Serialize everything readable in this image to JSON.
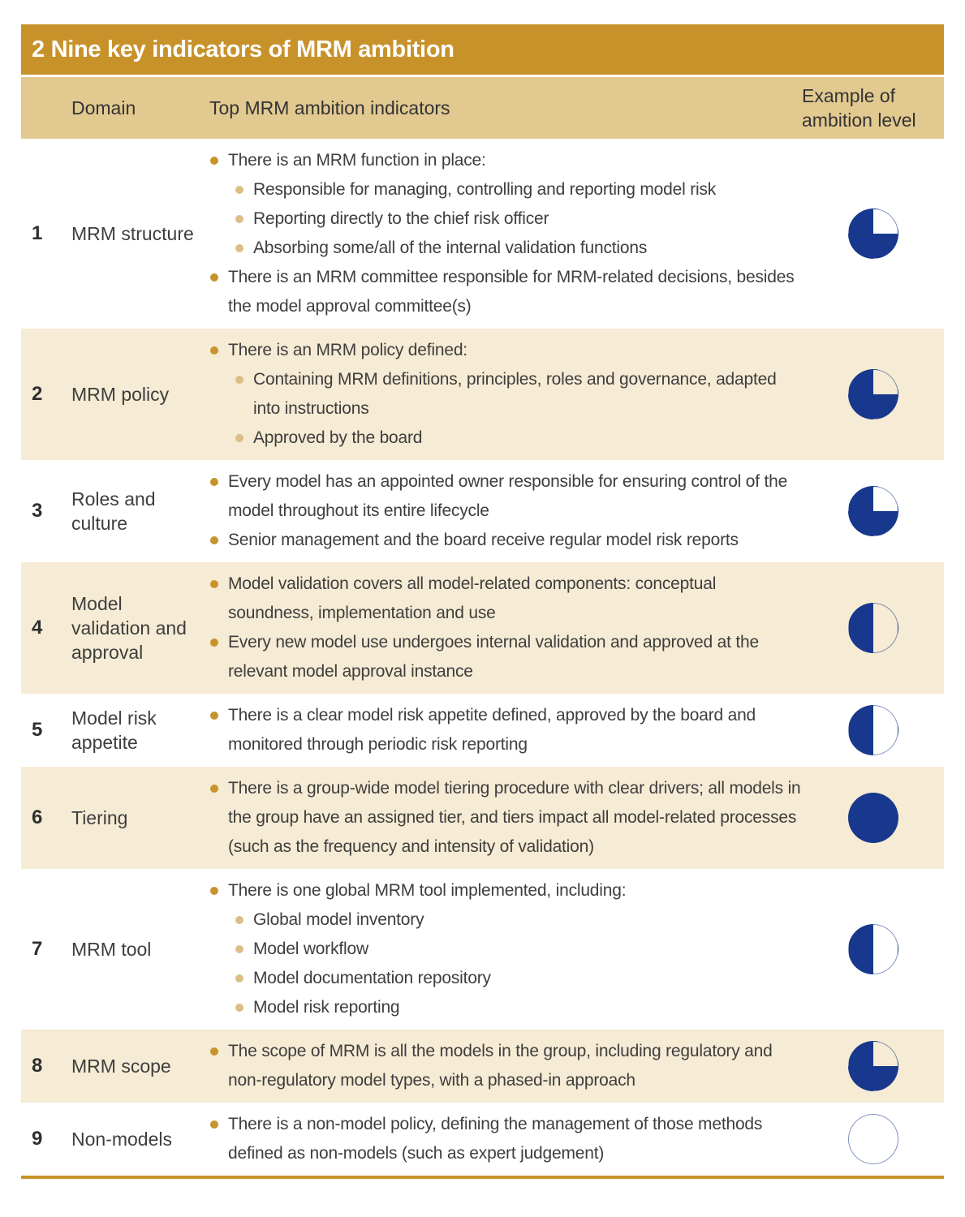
{
  "title": "2 Nine key indicators of MRM ambition",
  "columns": {
    "domain": "Domain",
    "indicators": "Top MRM ambition indicators",
    "ambition": "Example of ambition level"
  },
  "colors": {
    "gold": "#C8922B",
    "tan": "#E2C990",
    "cream": "#F6EBD4",
    "navy": "#17388C",
    "bullet_level1": "#C8932C",
    "bullet_level2": "#DDBE85",
    "rule": "#C8932C"
  },
  "rows": [
    {
      "num": "1",
      "domain": "MRM structure",
      "ambition": {
        "fill_pct": 75,
        "name": "three-quarters filled"
      },
      "bullets": [
        {
          "level": 1,
          "text": "There is an MRM function in place:"
        },
        {
          "level": 2,
          "text": "Responsible for managing, controlling and reporting model risk"
        },
        {
          "level": 2,
          "text": "Reporting directly to the chief risk officer"
        },
        {
          "level": 2,
          "text": "Absorbing some/all of the internal validation functions"
        },
        {
          "level": 1,
          "text": "There is an MRM committee responsible for MRM-related decisions, besides the model approval committee(s)"
        }
      ]
    },
    {
      "num": "2",
      "domain": "MRM policy",
      "ambition": {
        "fill_pct": 75,
        "name": "three-quarters filled"
      },
      "bullets": [
        {
          "level": 1,
          "text": "There is an MRM policy defined:"
        },
        {
          "level": 2,
          "text": "Containing MRM definitions, principles, roles and governance, adapted into instructions"
        },
        {
          "level": 2,
          "text": "Approved by the board"
        }
      ]
    },
    {
      "num": "3",
      "domain": "Roles and culture",
      "ambition": {
        "fill_pct": 75,
        "name": "three-quarters filled"
      },
      "bullets": [
        {
          "level": 1,
          "text": "Every model has an appointed owner responsible for ensuring control of the model throughout its entire lifecycle"
        },
        {
          "level": 1,
          "text": "Senior management and the board receive regular model risk reports"
        }
      ]
    },
    {
      "num": "4",
      "domain": "Model validation and approval",
      "ambition": {
        "fill_pct": 50,
        "name": "half filled"
      },
      "bullets": [
        {
          "level": 1,
          "text": "Model validation covers all model-related components: conceptual soundness, implementation and use"
        },
        {
          "level": 1,
          "text": "Every new model use undergoes internal validation and approved at the relevant model approval instance"
        }
      ]
    },
    {
      "num": "5",
      "domain": "Model risk appetite",
      "ambition": {
        "fill_pct": 50,
        "name": "half filled"
      },
      "bullets": [
        {
          "level": 1,
          "text": "There is a clear model risk appetite defined, approved by the board and monitored through periodic risk reporting"
        }
      ]
    },
    {
      "num": "6",
      "domain": "Tiering",
      "ambition": {
        "fill_pct": 100,
        "name": "fully filled"
      },
      "bullets": [
        {
          "level": 1,
          "text": "There is a group-wide model tiering procedure with clear drivers; all models in the group have an assigned tier, and tiers impact all model-related processes (such as the frequency and intensity of validation)"
        }
      ]
    },
    {
      "num": "7",
      "domain": "MRM tool",
      "ambition": {
        "fill_pct": 50,
        "name": "half filled"
      },
      "bullets": [
        {
          "level": 1,
          "text": "There is one global MRM tool implemented, including:"
        },
        {
          "level": 2,
          "text": "Global model inventory"
        },
        {
          "level": 2,
          "text": "Model workflow"
        },
        {
          "level": 2,
          "text": "Model documentation repository"
        },
        {
          "level": 2,
          "text": "Model risk reporting"
        }
      ]
    },
    {
      "num": "8",
      "domain": "MRM scope",
      "ambition": {
        "fill_pct": 75,
        "name": "three-quarters filled"
      },
      "bullets": [
        {
          "level": 1,
          "text": "The scope of MRM is all the models in the group, including regulatory and non-regulatory model types, with a phased-in approach"
        }
      ]
    },
    {
      "num": "9",
      "domain": "Non-models",
      "ambition": {
        "fill_pct": 0,
        "name": "empty"
      },
      "bullets": [
        {
          "level": 1,
          "text": "There is a non-model policy, defining the management of those methods defined as non-models (such as expert judgement)"
        }
      ]
    }
  ]
}
